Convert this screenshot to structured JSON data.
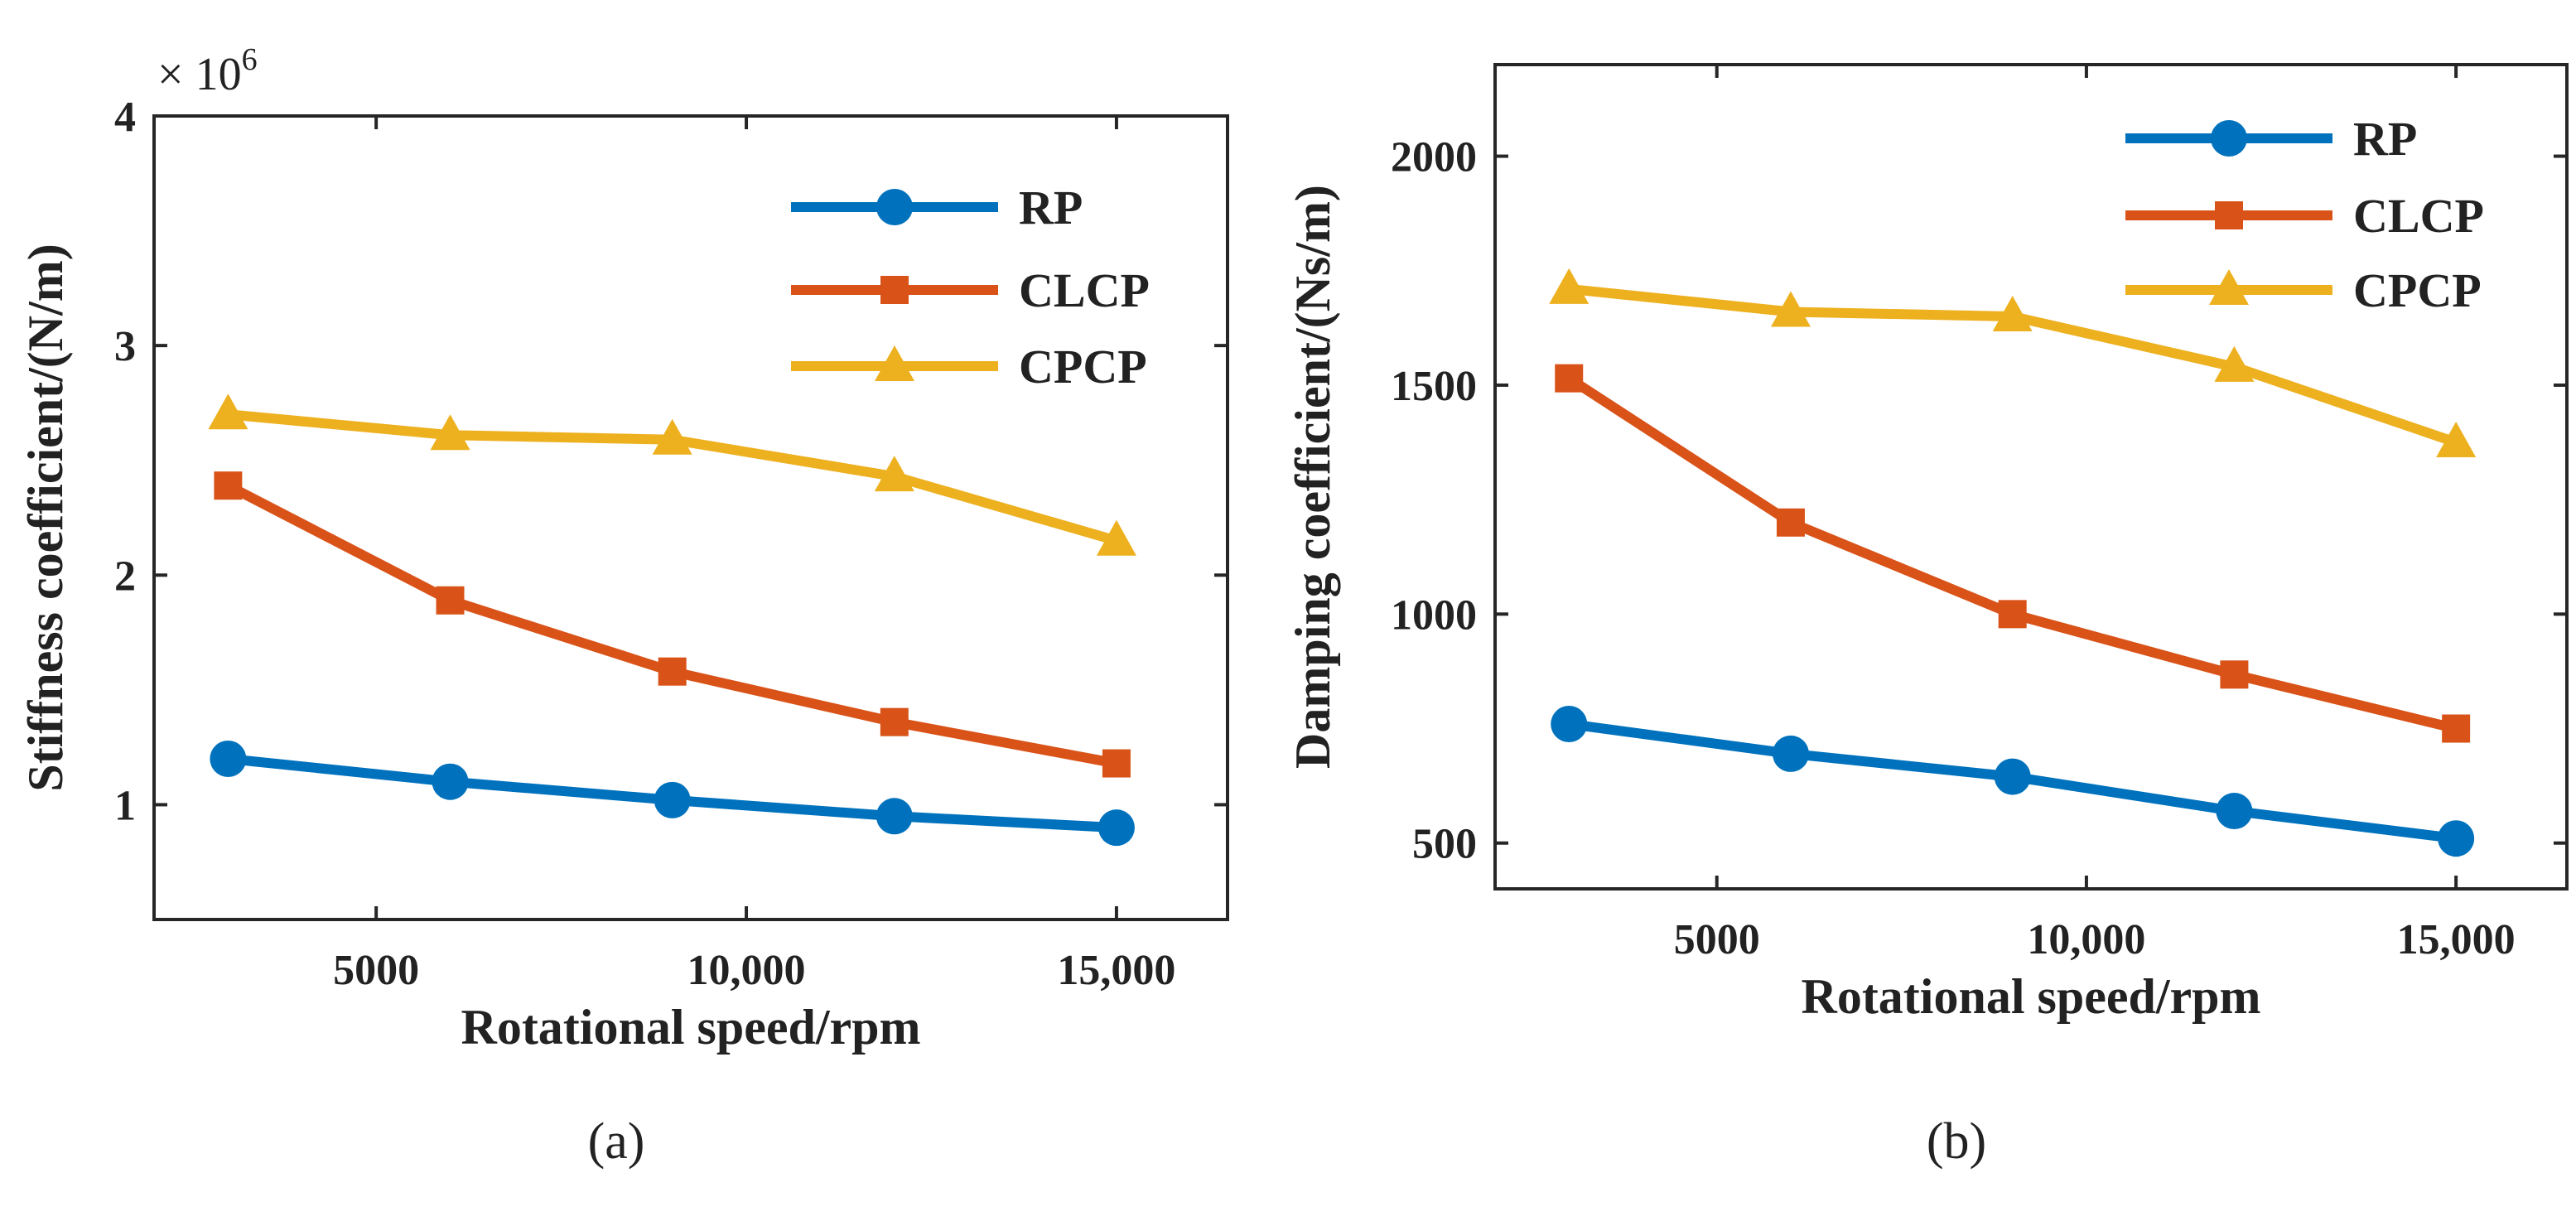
{
  "chart_data": [
    {
      "type": "line",
      "panel_label": "(a)",
      "xlabel": "Rotational speed/rpm",
      "ylabel": "Stiffness coefficient/(N/m)",
      "y_multiplier": "× 10",
      "y_multiplier_exp": "6",
      "xlim": [
        2000,
        16500
      ],
      "ylim": [
        0.5,
        4
      ],
      "xticks": [
        5000,
        10000,
        15000
      ],
      "xtick_labels": [
        "5000",
        "10,000",
        "15,000"
      ],
      "yticks": [
        1,
        2,
        3,
        4
      ],
      "ytick_labels": [
        "1",
        "2",
        "3",
        "4"
      ],
      "legend_position": "top-right",
      "x": [
        3000,
        6000,
        9000,
        12000,
        15000
      ],
      "series": [
        {
          "name": "RP",
          "color": "#0072BD",
          "marker": "circle",
          "values": [
            1.2,
            1.1,
            1.02,
            0.95,
            0.9
          ]
        },
        {
          "name": "CLCP",
          "color": "#D95319",
          "marker": "square",
          "values": [
            2.39,
            1.89,
            1.58,
            1.36,
            1.18
          ]
        },
        {
          "name": "CPCP",
          "color": "#EDB120",
          "marker": "triangle",
          "values": [
            2.7,
            2.61,
            2.59,
            2.43,
            2.15
          ]
        }
      ]
    },
    {
      "type": "line",
      "panel_label": "(b)",
      "xlabel": "Rotational speed/rpm",
      "ylabel": "Damping coefficient/(Ns/m)",
      "xlim": [
        2000,
        16500
      ],
      "ylim": [
        400,
        2200
      ],
      "xticks": [
        5000,
        10000,
        15000
      ],
      "xtick_labels": [
        "5000",
        "10,000",
        "15,000"
      ],
      "yticks": [
        500,
        1000,
        1500,
        2000
      ],
      "ytick_labels": [
        "500",
        "1000",
        "1500",
        "2000"
      ],
      "legend_position": "top-right",
      "x": [
        3000,
        6000,
        9000,
        12000,
        15000
      ],
      "series": [
        {
          "name": "RP",
          "color": "#0072BD",
          "marker": "circle",
          "values": [
            760,
            695,
            645,
            570,
            510
          ]
        },
        {
          "name": "CLCP",
          "color": "#D95319",
          "marker": "square",
          "values": [
            1515,
            1200,
            1000,
            868,
            750
          ]
        },
        {
          "name": "CPCP",
          "color": "#EDB120",
          "marker": "triangle",
          "values": [
            1710,
            1660,
            1650,
            1540,
            1375
          ]
        }
      ]
    }
  ]
}
